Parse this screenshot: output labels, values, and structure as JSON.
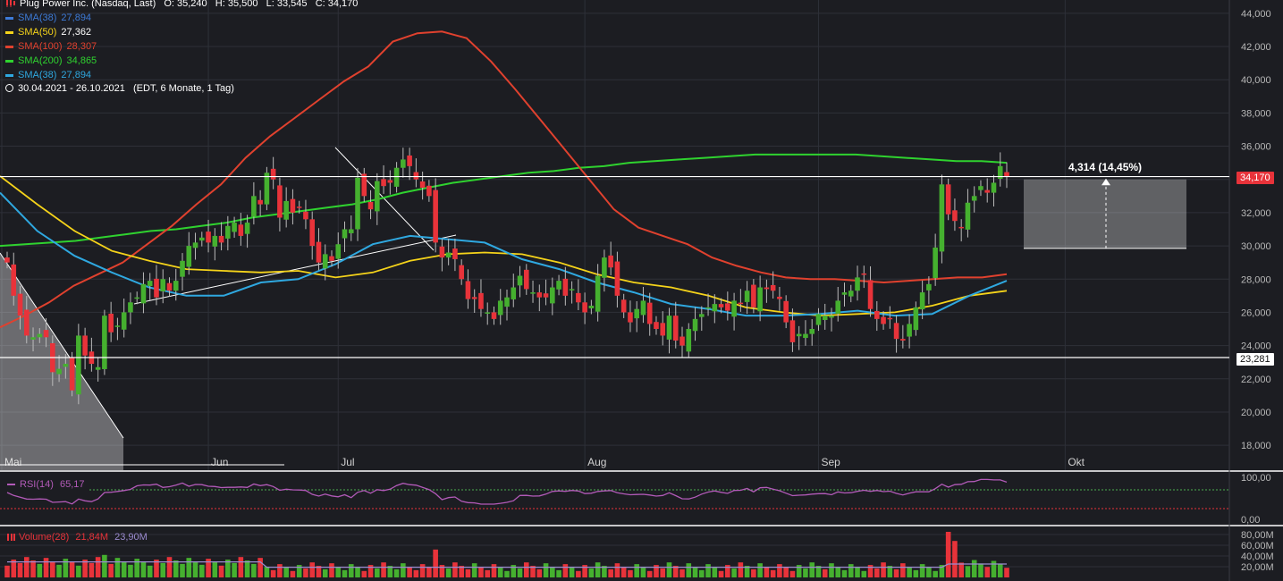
{
  "header": {
    "symbol": "Plug Power Inc. (Nasdaq, Last)",
    "ohlc_text": "O: 35,240   H: 35,500   L: 33,545   C: 34,170",
    "date_range": "30.04.2021 - 26.10.2021",
    "period": "(EDT, 6 Monate, 1 Tag)"
  },
  "legend": [
    {
      "label": "SMA(38)",
      "value": "27,894",
      "color": "#3d7bd8"
    },
    {
      "label": "SMA(50)",
      "value": "27,362",
      "color": "#f5d31a"
    },
    {
      "label": "SMA(100)",
      "value": "28,307",
      "color": "#e0412e"
    },
    {
      "label": "SMA(200)",
      "value": "34,865",
      "color": "#2fd22f"
    },
    {
      "label": "SMA(38)",
      "value": "27,894",
      "color": "#2fa8e0"
    }
  ],
  "price_axis": {
    "ticks": [
      "18,000",
      "20,000",
      "22,000",
      "24,000",
      "26,000",
      "28,000",
      "30,000",
      "32,000",
      "34,000",
      "36,000",
      "38,000",
      "40,000",
      "42,000",
      "44,000"
    ],
    "ylim": [
      16.5,
      44.8
    ]
  },
  "price_tags": {
    "last": "34,170",
    "support": "23,281"
  },
  "measure": {
    "label": "4,314 (14,45%)"
  },
  "x_labels": [
    "Mai",
    "Jun",
    "Jul",
    "Aug",
    "Sep",
    "Okt"
  ],
  "rsi": {
    "label": "RSI(14)",
    "value": "65,17",
    "ticks": [
      "100,00",
      "0,00"
    ]
  },
  "volume": {
    "label": "Volume(28)",
    "value1": "21,84M",
    "value2": "23,90M",
    "ticks": [
      "80,00M",
      "60,00M",
      "40,00M",
      "20,00M"
    ]
  },
  "colors": {
    "up": "#45b02f",
    "down": "#e8333a",
    "background": "#1c1d22",
    "grid": "#2e3038"
  },
  "chart_data": {
    "type": "candlestick",
    "title": "Plug Power Inc. (Nasdaq, Last)",
    "x_labels": [
      "Mai",
      "Jun",
      "Jul",
      "Aug",
      "Sep",
      "Okt"
    ],
    "ylim": [
      16.5,
      44.8
    ],
    "close_series": [
      29.0,
      27.0,
      25.8,
      24.6,
      24.5,
      24.7,
      24.5,
      22.4,
      22.6,
      22.9,
      21.3,
      24.6,
      23.4,
      22.9,
      22.7,
      25.8,
      24.8,
      25.2,
      26.0,
      26.6,
      26.9,
      27.7,
      27.9,
      26.9,
      28.0,
      27.3,
      27.9,
      29.1,
      30.0,
      30.2,
      30.5,
      30.2,
      30.6,
      30.2,
      31.2,
      31.4,
      30.6,
      31.4,
      33.0,
      32.5,
      34.4,
      34.0,
      31.7,
      32.7,
      32.0,
      32.3,
      31.6,
      30.0,
      29.0,
      29.5,
      29.1,
      30.1,
      31.0,
      31.0,
      34.1,
      33.0,
      32.2,
      33.9,
      33.6,
      33.8,
      34.7,
      35.2,
      34.8,
      34.0,
      33.5,
      33.0,
      30.2,
      29.3,
      29.6,
      29.2,
      28.0,
      26.8,
      26.8,
      26.2,
      26.0,
      25.6,
      26.7,
      26.9,
      27.5,
      28.2,
      27.4,
      27.2,
      26.9,
      26.9,
      27.5,
      27.9,
      27.0,
      27.4,
      26.6,
      26.0,
      26.4,
      28.2,
      29.3,
      28.7,
      27.0,
      26.0,
      25.4,
      26.2,
      26.7,
      25.3,
      25.0,
      24.6,
      25.8,
      24.3,
      24.0,
      25.0,
      25.6,
      25.9,
      26.3,
      26.5,
      26.3,
      26.1,
      26.7,
      26.5,
      27.3,
      26.3,
      27.5,
      27.4,
      27.3,
      26.8,
      25.4,
      24.2,
      24.7,
      24.7,
      25.0,
      25.9,
      25.8,
      25.8,
      26.7,
      27.2,
      27.3,
      28.1,
      28.3,
      26.2,
      25.6,
      25.3,
      25.6,
      24.4,
      24.3,
      25.3,
      26.3,
      27.2,
      27.7,
      29.9,
      33.7,
      31.9,
      31.5,
      31.1,
      32.6,
      33.0,
      33.6,
      33.2,
      33.8,
      34.8,
      34.2
    ],
    "sma200": [
      30.0,
      30.1,
      30.2,
      30.3,
      30.5,
      30.7,
      30.9,
      31.0,
      31.2,
      31.4,
      31.7,
      31.9,
      32.1,
      32.3,
      32.5,
      32.8,
      33.2,
      33.5,
      33.8,
      34.0,
      34.2,
      34.4,
      34.5,
      34.7,
      34.8,
      35.0,
      35.1,
      35.2,
      35.3,
      35.4,
      35.5,
      35.5,
      35.5,
      35.5,
      35.5,
      35.4,
      35.3,
      35.2,
      35.1,
      35.1,
      35.0
    ],
    "sma100": [
      25.1,
      25.8,
      26.6,
      27.6,
      28.3,
      29.0,
      30.1,
      31.2,
      32.5,
      33.7,
      35.3,
      36.6,
      37.7,
      38.8,
      39.9,
      40.8,
      42.3,
      42.8,
      42.9,
      42.5,
      41.1,
      39.4,
      37.6,
      35.8,
      34.0,
      32.2,
      31.1,
      30.6,
      30.1,
      29.3,
      28.8,
      28.4,
      28.1,
      28.0,
      28.0,
      27.9,
      27.8,
      27.9,
      28.0,
      28.1,
      28.1,
      28.3
    ],
    "sma50": [
      34.2,
      32.5,
      30.9,
      29.7,
      29.1,
      28.6,
      28.5,
      28.4,
      28.5,
      28.1,
      28.4,
      29.1,
      29.5,
      29.6,
      29.5,
      29.0,
      28.3,
      27.8,
      27.5,
      27.0,
      26.3,
      26.0,
      25.8,
      25.9,
      26.0,
      26.4,
      27.0,
      27.3
    ],
    "sma38": [
      33.2,
      30.9,
      29.4,
      28.4,
      27.5,
      27.0,
      27.0,
      27.8,
      28.0,
      28.9,
      30.1,
      30.6,
      30.4,
      30.2,
      29.2,
      28.6,
      27.8,
      27.2,
      26.5,
      26.2,
      25.8,
      25.8,
      25.9,
      26.1,
      25.8,
      25.9,
      27.0,
      27.9
    ]
  }
}
